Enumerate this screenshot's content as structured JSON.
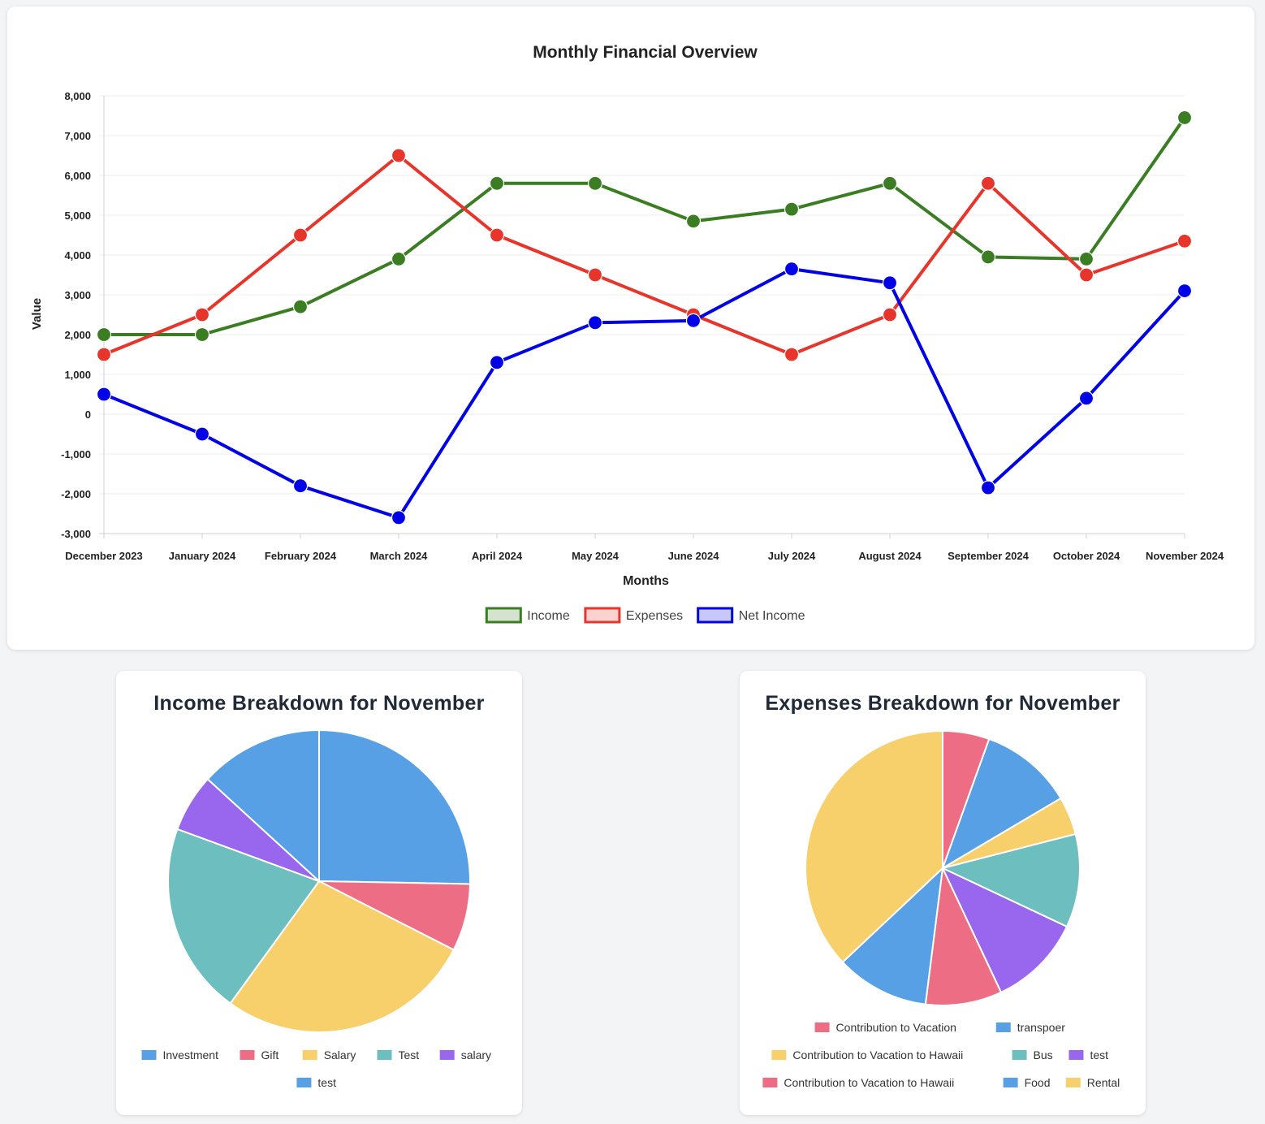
{
  "colors": {
    "income": "#3b7d23",
    "expenses": "#e8352b",
    "net_income": "#0000e8",
    "pie_blue": "#57a0e5",
    "pie_red": "#ed6d85",
    "pie_yellow": "#f7cf6b",
    "pie_teal": "#6cbebf",
    "pie_purple": "#9966ee"
  },
  "chart_data": [
    {
      "type": "line",
      "title": "Monthly Financial Overview",
      "xlabel": "Months",
      "ylabel": "Value",
      "ylim": [
        -3000,
        8000
      ],
      "y_ticks": [
        "-3,000",
        "-2,000",
        "-1,000",
        "0",
        "1,000",
        "2,000",
        "3,000",
        "4,000",
        "5,000",
        "6,000",
        "7,000",
        "8,000"
      ],
      "y_tick_values": [
        -3000,
        -2000,
        -1000,
        0,
        1000,
        2000,
        3000,
        4000,
        5000,
        6000,
        7000,
        8000
      ],
      "grid": true,
      "legend_position": "bottom",
      "categories": [
        "December 2023",
        "January 2024",
        "February 2024",
        "March 2024",
        "April 2024",
        "May 2024",
        "June 2024",
        "July 2024",
        "August 2024",
        "September 2024",
        "October 2024",
        "November 2024"
      ],
      "series": [
        {
          "name": "Income",
          "color_key": "income",
          "values": [
            2000,
            2000,
            2700,
            3900,
            5800,
            5800,
            4850,
            5150,
            5800,
            3950,
            3900,
            7450
          ]
        },
        {
          "name": "Expenses",
          "color_key": "expenses",
          "values": [
            1500,
            2500,
            4500,
            6500,
            4500,
            3500,
            2500,
            1500,
            2500,
            5800,
            3500,
            4350
          ]
        },
        {
          "name": "Net Income",
          "color_key": "net_income",
          "values": [
            500,
            -500,
            -1800,
            -2600,
            1300,
            2300,
            2350,
            3650,
            3300,
            -1850,
            400,
            3100
          ]
        }
      ]
    },
    {
      "type": "pie",
      "title": "Income Breakdown for November",
      "legend_position": "bottom",
      "labels": [
        "Investment",
        "Gift",
        "Salary",
        "Test",
        "salary",
        "test"
      ],
      "values": [
        25.3,
        7.2,
        27.5,
        20.6,
        6.2,
        13.2
      ],
      "color_keys": [
        "pie_blue",
        "pie_red",
        "pie_yellow",
        "pie_teal",
        "pie_purple",
        "pie_blue"
      ]
    },
    {
      "type": "pie",
      "title": "Expenses Breakdown for November",
      "legend_position": "bottom",
      "labels": [
        "Contribution to Vacation",
        "transpoer",
        "Contribution to Vacation to Hawaii",
        "Bus",
        "test",
        "Contribution to Vacation to Hawaii",
        "Food",
        "Rental"
      ],
      "values": [
        5.5,
        11.0,
        4.5,
        11.0,
        11.0,
        9.0,
        11.0,
        37.0
      ],
      "color_keys": [
        "pie_red",
        "pie_blue",
        "pie_yellow",
        "pie_teal",
        "pie_purple",
        "pie_red",
        "pie_blue",
        "pie_yellow"
      ]
    }
  ]
}
